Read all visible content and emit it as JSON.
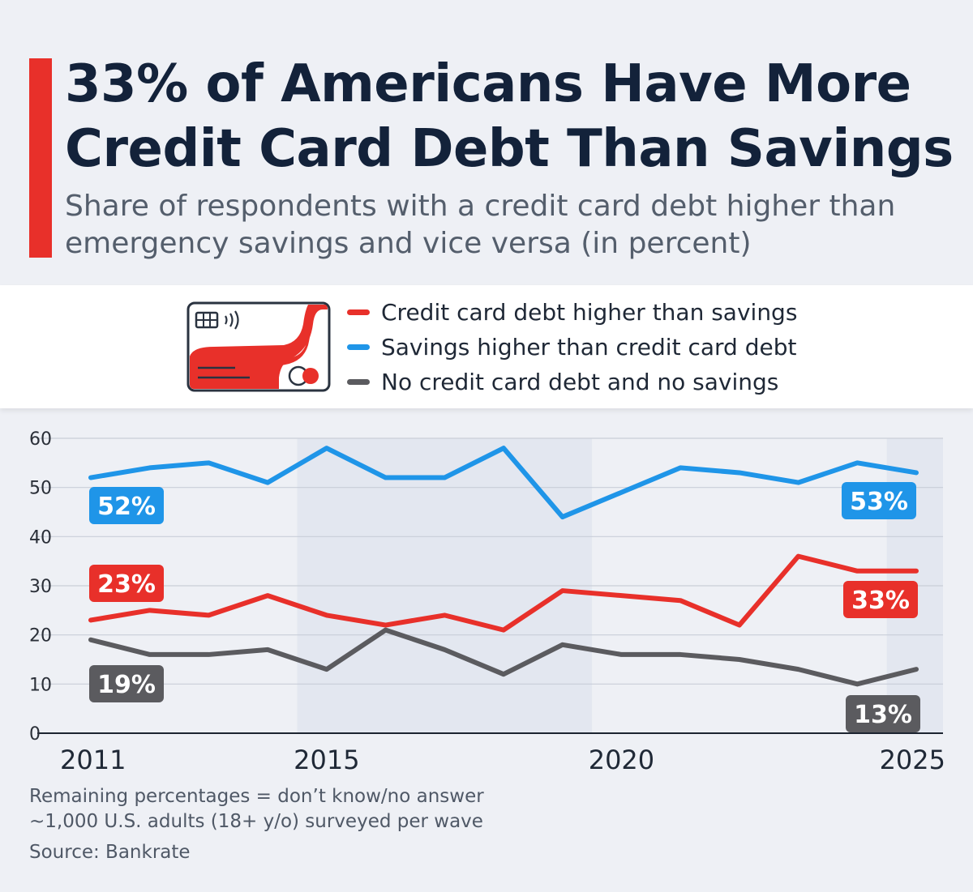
{
  "header": {
    "title": "33% of Americans Have More Credit Card Debt Than Savings",
    "subtitle": "Share of respondents with a credit card debt higher than emergency savings and vice versa (in percent)"
  },
  "icon": "credit-card-icon",
  "colors": {
    "accent": "#e8302a",
    "credit": "#e8302a",
    "savings": "#1f95e8",
    "none": "#5b5b5f",
    "title": "#13223a"
  },
  "chart_data": {
    "type": "line",
    "title": "33% of Americans Have More Credit Card Debt Than Savings",
    "subtitle": "Share of respondents with a credit card debt higher than emergency savings and vice versa (in percent)",
    "x": [
      2011,
      2012,
      2013,
      2014,
      2015,
      2016,
      2017,
      2018,
      2019,
      2020,
      2021,
      2022,
      2023,
      2024,
      2025
    ],
    "xticks": [
      2011,
      2015,
      2020,
      2025
    ],
    "xlim": [
      2011,
      2025
    ],
    "yticks": [
      0,
      10,
      20,
      30,
      40,
      50,
      60
    ],
    "ylim": [
      0,
      60
    ],
    "grid": true,
    "legend_position": "top",
    "shaded_ranges": [
      [
        2015,
        2019
      ],
      [
        2025,
        2025
      ]
    ],
    "series": [
      {
        "name": "Credit card debt higher than savings",
        "color": "#e8302a",
        "values": [
          23,
          25,
          24,
          28,
          24,
          22,
          24,
          21,
          29,
          28,
          27,
          22,
          36,
          33,
          33
        ],
        "start_label": "23%",
        "end_label": "33%"
      },
      {
        "name": "Savings higher than credit card debt",
        "color": "#1f95e8",
        "values": [
          52,
          54,
          55,
          51,
          58,
          52,
          52,
          58,
          44,
          49,
          54,
          53,
          51,
          55,
          53
        ],
        "start_label": "52%",
        "end_label": "53%"
      },
      {
        "name": "No credit card debt and no savings",
        "color": "#5b5b5f",
        "values": [
          19,
          16,
          16,
          17,
          13,
          21,
          17,
          12,
          18,
          16,
          16,
          15,
          13,
          10,
          13
        ],
        "start_label": "19%",
        "end_label": "13%"
      }
    ]
  },
  "footnotes": {
    "line1": "Remaining percentages = don’t know/no answer",
    "line2": "~1,000 U.S. adults (18+ y/o) surveyed per wave",
    "source": "Source: Bankrate"
  }
}
